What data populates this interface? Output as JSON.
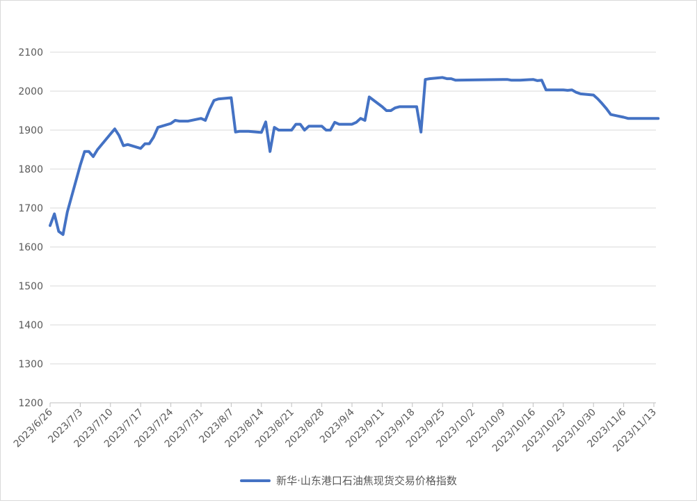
{
  "chart_data": {
    "type": "line",
    "title": "",
    "xlabel": "",
    "ylabel": "",
    "ylim": [
      1200,
      2100
    ],
    "yticks": [
      1200,
      1300,
      1400,
      1500,
      1600,
      1700,
      1800,
      1900,
      2000,
      2100
    ],
    "grid": true,
    "legend_position": "bottom",
    "x_tick_labels": [
      "2023/6/26",
      "2023/7/3",
      "2023/7/10",
      "2023/7/17",
      "2023/7/24",
      "2023/7/31",
      "2023/8/7",
      "2023/8/14",
      "2023/8/21",
      "2023/8/28",
      "2023/9/4",
      "2023/9/11",
      "2023/9/18",
      "2023/9/25",
      "2023/10/2",
      "2023/10/9",
      "2023/10/16",
      "2023/10/23",
      "2023/10/30",
      "2023/11/6",
      "2023/11/13"
    ],
    "x_range": [
      "2023/6/26",
      "2023/11/13"
    ],
    "series": [
      {
        "name": "新华·山东港口石油焦现货交易价格指数",
        "color": "#4472C4",
        "points": [
          [
            "2023/6/26",
            1655
          ],
          [
            "2023/6/27",
            1685
          ],
          [
            "2023/6/28",
            1640
          ],
          [
            "2023/6/29",
            1632
          ],
          [
            "2023/6/30",
            1690
          ],
          [
            "2023/7/3",
            1810
          ],
          [
            "2023/7/4",
            1845
          ],
          [
            "2023/7/5",
            1845
          ],
          [
            "2023/7/6",
            1832
          ],
          [
            "2023/7/7",
            1850
          ],
          [
            "2023/7/10",
            1890
          ],
          [
            "2023/7/11",
            1903
          ],
          [
            "2023/7/12",
            1886
          ],
          [
            "2023/7/13",
            1860
          ],
          [
            "2023/7/14",
            1863
          ],
          [
            "2023/7/17",
            1853
          ],
          [
            "2023/7/18",
            1865
          ],
          [
            "2023/7/19",
            1865
          ],
          [
            "2023/7/20",
            1882
          ],
          [
            "2023/7/21",
            1907
          ],
          [
            "2023/7/24",
            1917
          ],
          [
            "2023/7/25",
            1925
          ],
          [
            "2023/7/26",
            1923
          ],
          [
            "2023/7/27",
            1923
          ],
          [
            "2023/7/28",
            1923
          ],
          [
            "2023/7/31",
            1930
          ],
          [
            "2023/8/1",
            1925
          ],
          [
            "2023/8/2",
            1953
          ],
          [
            "2023/8/3",
            1976
          ],
          [
            "2023/8/4",
            1980
          ],
          [
            "2023/8/7",
            1983
          ],
          [
            "2023/8/8",
            1895
          ],
          [
            "2023/8/9",
            1897
          ],
          [
            "2023/8/10",
            1897
          ],
          [
            "2023/8/11",
            1897
          ],
          [
            "2023/8/14",
            1894
          ],
          [
            "2023/8/15",
            1921
          ],
          [
            "2023/8/16",
            1845
          ],
          [
            "2023/8/17",
            1907
          ],
          [
            "2023/8/18",
            1900
          ],
          [
            "2023/8/21",
            1900
          ],
          [
            "2023/8/22",
            1915
          ],
          [
            "2023/8/23",
            1915
          ],
          [
            "2023/8/24",
            1900
          ],
          [
            "2023/8/25",
            1910
          ],
          [
            "2023/8/28",
            1910
          ],
          [
            "2023/8/29",
            1900
          ],
          [
            "2023/8/30",
            1900
          ],
          [
            "2023/8/31",
            1920
          ],
          [
            "2023/9/1",
            1915
          ],
          [
            "2023/9/4",
            1915
          ],
          [
            "2023/9/5",
            1920
          ],
          [
            "2023/9/6",
            1930
          ],
          [
            "2023/9/7",
            1925
          ],
          [
            "2023/9/8",
            1985
          ],
          [
            "2023/9/11",
            1960
          ],
          [
            "2023/9/12",
            1950
          ],
          [
            "2023/9/13",
            1950
          ],
          [
            "2023/9/14",
            1957
          ],
          [
            "2023/9/15",
            1960
          ],
          [
            "2023/9/18",
            1960
          ],
          [
            "2023/9/19",
            1960
          ],
          [
            "2023/9/20",
            1895
          ],
          [
            "2023/9/21",
            2030
          ],
          [
            "2023/9/22",
            2032
          ],
          [
            "2023/9/25",
            2035
          ],
          [
            "2023/9/26",
            2032
          ],
          [
            "2023/9/27",
            2032
          ],
          [
            "2023/9/28",
            2028
          ],
          [
            "2023/10/9",
            2030
          ],
          [
            "2023/10/10",
            2030
          ],
          [
            "2023/10/11",
            2028
          ],
          [
            "2023/10/12",
            2028
          ],
          [
            "2023/10/13",
            2028
          ],
          [
            "2023/10/16",
            2030
          ],
          [
            "2023/10/17",
            2027
          ],
          [
            "2023/10/18",
            2028
          ],
          [
            "2023/10/19",
            2003
          ],
          [
            "2023/10/20",
            2003
          ],
          [
            "2023/10/23",
            2003
          ],
          [
            "2023/10/24",
            2002
          ],
          [
            "2023/10/25",
            2003
          ],
          [
            "2023/10/26",
            1997
          ],
          [
            "2023/10/27",
            1993
          ],
          [
            "2023/10/30",
            1990
          ],
          [
            "2023/10/31",
            1980
          ],
          [
            "2023/11/1",
            1968
          ],
          [
            "2023/11/2",
            1955
          ],
          [
            "2023/11/3",
            1940
          ],
          [
            "2023/11/6",
            1933
          ],
          [
            "2023/11/7",
            1930
          ],
          [
            "2023/11/8",
            1930
          ],
          [
            "2023/11/9",
            1930
          ],
          [
            "2023/11/10",
            1930
          ],
          [
            "2023/11/13",
            1930
          ],
          [
            "2023/11/14",
            1930
          ]
        ]
      }
    ]
  }
}
